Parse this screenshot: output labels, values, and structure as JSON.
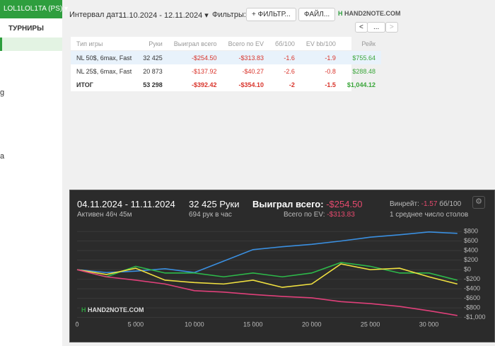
{
  "sidebar": {
    "account": "LOL1LOL1TA (PS)",
    "section": "ТУРНИРЫ",
    "items": [
      "g",
      "a"
    ]
  },
  "toolbar": {
    "interval_label": "Интервал дат:",
    "interval": "11.10.2024 - 12.11.2024",
    "filters_label": "Фильтры:",
    "filter_button": "ФИЛЬТР...",
    "file_button": "ФАЙЛ...",
    "logo": "HAND2NOTE.COM",
    "nav_more": "..."
  },
  "table": {
    "columns": [
      "Тип игры",
      "Руки",
      "Выиграл всего",
      "Всего по EV",
      "бб/100",
      "EV bb/100",
      "Рейк"
    ],
    "rows": [
      [
        "NL 50$, 6max, Fast",
        "32 425",
        "-$254.50",
        "-$313.83",
        "-1.6",
        "-1.9",
        "$755.64"
      ],
      [
        "NL 25$, 6max, Fast",
        "20 873",
        "-$137.92",
        "-$40.27",
        "-2.6",
        "-0.8",
        "$288.48"
      ],
      [
        "ИТОГ",
        "53 298",
        "-$392.42",
        "-$354.10",
        "-2",
        "-1.5",
        "$1,044.12"
      ]
    ]
  },
  "graph": {
    "period": "04.11.2024 - 11.11.2024",
    "active": "Активен 46ч 45м",
    "hands": "32 425 Руки",
    "hands_per_hour": "694 рук в час",
    "won_label": "Выиграл всего:",
    "won": "-$254.50",
    "ev_label": "Всего по EV:",
    "ev": "-$313.83",
    "winrate_label": "Винрейт:",
    "winrate": "-1.57",
    "winrate_unit": "бб/100",
    "tables": "1 среднее число столов",
    "logo": "HAND2NOTE.COM",
    "chart_data": {
      "type": "line",
      "x": [
        0,
        2500,
        5000,
        7500,
        10000,
        12500,
        15000,
        17500,
        20000,
        22500,
        25000,
        27500,
        30000,
        32425
      ],
      "xlim": [
        0,
        32800
      ],
      "ylim": [
        -1050,
        950
      ],
      "xticks": [
        0,
        {
          "value": 5000,
          "label": "5 000"
        },
        {
          "value": 10000,
          "label": "10 000"
        },
        {
          "value": 15000,
          "label": "15 000"
        },
        {
          "value": 20000,
          "label": "20 000"
        },
        {
          "value": 25000,
          "label": "25 000"
        },
        {
          "value": 30000,
          "label": "30 000"
        }
      ],
      "yticks": [
        {
          "value": 800,
          "label": "$800"
        },
        {
          "value": 600,
          "label": "$600"
        },
        {
          "value": 400,
          "label": "$400"
        },
        {
          "value": 200,
          "label": "$200"
        },
        {
          "value": 0,
          "label": "$0"
        },
        {
          "value": -200,
          "label": "-$200"
        },
        {
          "value": -400,
          "label": "-$400"
        },
        {
          "value": -600,
          "label": "-$600"
        },
        {
          "value": -800,
          "label": "-$800"
        },
        {
          "value": -1000,
          "label": "-$1,000"
        }
      ],
      "grid": true,
      "series": [
        {
          "color": "#3a8fe0",
          "values": [
            0,
            -60,
            -30,
            20,
            -60,
            180,
            420,
            480,
            530,
            600,
            680,
            730,
            790,
            760
          ]
        },
        {
          "color": "#2db84a",
          "values": [
            0,
            -150,
            70,
            -70,
            -70,
            -150,
            -70,
            -150,
            -70,
            150,
            70,
            -70,
            -70,
            -220
          ]
        },
        {
          "color": "#f0e040",
          "values": [
            0,
            -100,
            30,
            -220,
            -270,
            -300,
            -220,
            -370,
            -300,
            120,
            0,
            30,
            -150,
            -300
          ]
        },
        {
          "color": "#e0407a",
          "values": [
            0,
            -150,
            -220,
            -300,
            -440,
            -470,
            -520,
            -560,
            -590,
            -670,
            -710,
            -770,
            -860,
            -960
          ]
        }
      ]
    }
  }
}
